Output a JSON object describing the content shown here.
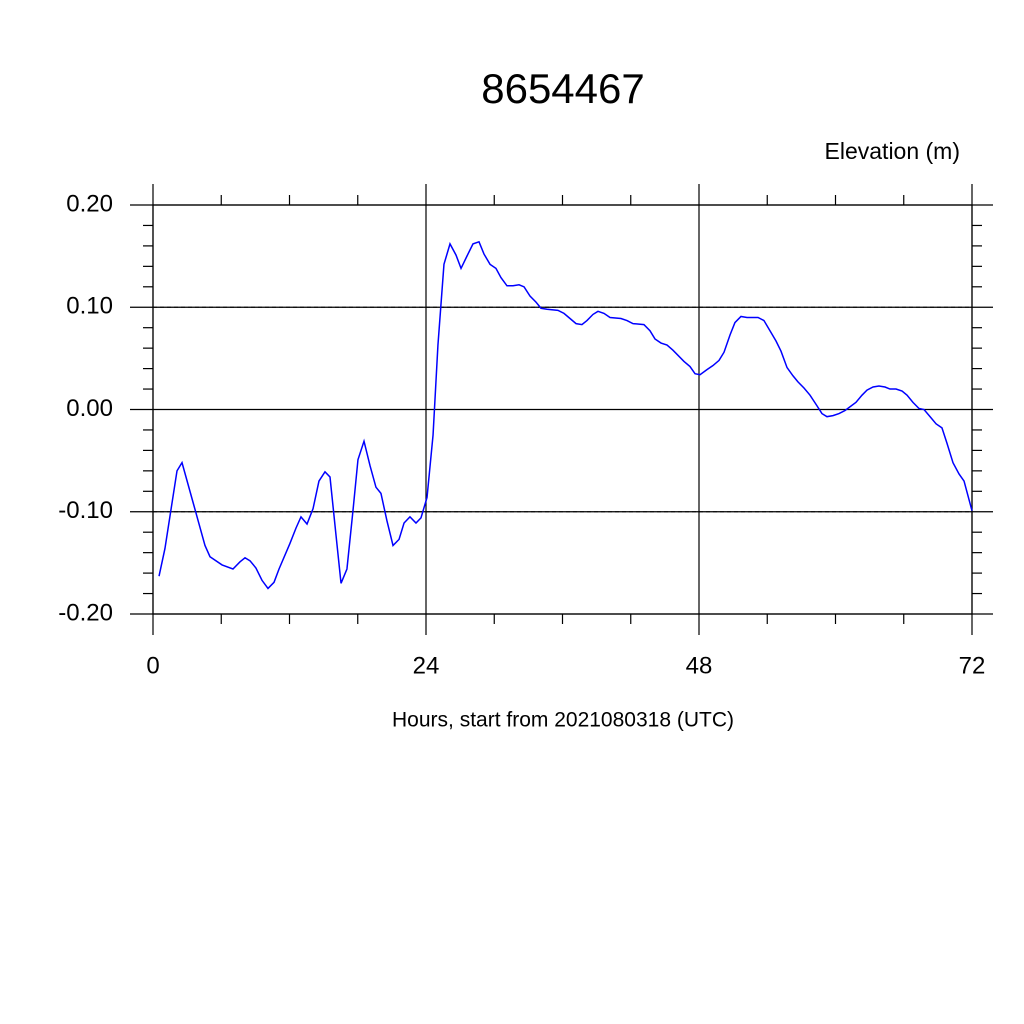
{
  "chart_data": {
    "type": "line",
    "title": "8654467",
    "subtitle": "Elevation (m)",
    "x_label": "Hours, start from 2021080318 (UTC)",
    "xlim": [
      0,
      72
    ],
    "ylim": [
      -0.2,
      0.2
    ],
    "xticks": [
      0,
      24,
      48,
      72
    ],
    "yticks": [
      {
        "value": -0.2,
        "label": "-0.20"
      },
      {
        "value": -0.1,
        "label": "-0.10"
      },
      {
        "value": 0,
        "label": "0.00"
      },
      {
        "value": 0.1,
        "label": "0.10"
      },
      {
        "value": 0.2,
        "label": "0.20"
      }
    ],
    "grid": true,
    "series": [
      {
        "color": "#0000ff",
        "x": [
          0.53,
          1.05,
          2.11,
          2.55,
          3.6,
          4.57,
          5.01,
          6.07,
          7.03,
          7.65,
          8.09,
          8.53,
          9.05,
          9.58,
          10.11,
          10.64,
          11.08,
          12.04,
          12.57,
          13.01,
          13.54,
          14.07,
          14.59,
          15.12,
          15.56,
          16.09,
          16.53,
          17.05,
          17.58,
          18.02,
          18.55,
          19.08,
          19.6,
          20.04,
          20.57,
          21.1,
          21.63,
          22.07,
          22.59,
          23.12,
          23.56,
          24.09,
          24.62,
          25.05,
          25.58,
          26.11,
          26.64,
          27.08,
          27.6,
          28.13,
          28.66,
          29.1,
          29.63,
          30.15,
          30.59,
          31.12,
          31.65,
          32.18,
          32.62,
          33.14,
          33.67,
          34.11,
          34.64,
          35.6,
          36.13,
          36.66,
          37.19,
          37.71,
          38.15,
          38.68,
          39.12,
          39.65,
          40.18,
          41.14,
          41.67,
          42.2,
          43.16,
          43.69,
          44.13,
          44.66,
          45.19,
          45.71,
          46.68,
          47.21,
          47.65,
          48.09,
          48.7,
          49.23,
          49.76,
          50.2,
          50.73,
          51.16,
          51.69,
          52.22,
          52.66,
          53.19,
          53.71,
          54.24,
          54.77,
          55.21,
          55.74,
          56.26,
          56.7,
          57.23,
          57.76,
          58.29,
          58.81,
          59.25,
          59.78,
          60.31,
          60.84,
          61.8,
          62.33,
          62.77,
          63.3,
          63.82,
          64.35,
          64.79,
          65.32,
          65.85,
          66.29,
          66.81,
          67.34,
          67.78,
          68.31,
          68.84,
          69.36,
          69.8,
          70.33,
          70.86,
          71.3,
          72
        ],
        "values": [
          -0.163,
          -0.136,
          -0.06,
          -0.052,
          -0.094,
          -0.133,
          -0.144,
          -0.152,
          -0.156,
          -0.149,
          -0.145,
          -0.148,
          -0.155,
          -0.167,
          -0.175,
          -0.169,
          -0.156,
          -0.131,
          -0.116,
          -0.105,
          -0.112,
          -0.097,
          -0.07,
          -0.061,
          -0.066,
          -0.123,
          -0.17,
          -0.156,
          -0.099,
          -0.049,
          -0.031,
          -0.055,
          -0.076,
          -0.082,
          -0.109,
          -0.133,
          -0.127,
          -0.111,
          -0.105,
          -0.111,
          -0.106,
          -0.086,
          -0.025,
          0.063,
          0.142,
          0.162,
          0.151,
          0.138,
          0.15,
          0.162,
          0.164,
          0.152,
          0.142,
          0.138,
          0.129,
          0.121,
          0.121,
          0.122,
          0.12,
          0.111,
          0.105,
          0.099,
          0.098,
          0.097,
          0.094,
          0.089,
          0.084,
          0.083,
          0.087,
          0.093,
          0.096,
          0.094,
          0.09,
          0.089,
          0.087,
          0.084,
          0.083,
          0.077,
          0.069,
          0.065,
          0.063,
          0.058,
          0.047,
          0.042,
          0.035,
          0.034,
          0.039,
          0.043,
          0.048,
          0.056,
          0.073,
          0.085,
          0.091,
          0.09,
          0.09,
          0.09,
          0.087,
          0.077,
          0.067,
          0.057,
          0.041,
          0.033,
          0.027,
          0.021,
          0.014,
          0.005,
          -0.004,
          -0.007,
          -0.006,
          -0.004,
          -0.001,
          0.007,
          0.014,
          0.019,
          0.022,
          0.023,
          0.022,
          0.02,
          0.02,
          0.018,
          0.014,
          0.007,
          0.001,
          0,
          -0.007,
          -0.014,
          -0.018,
          -0.033,
          -0.052,
          -0.063,
          -0.07,
          -0.099
        ]
      }
    ]
  }
}
